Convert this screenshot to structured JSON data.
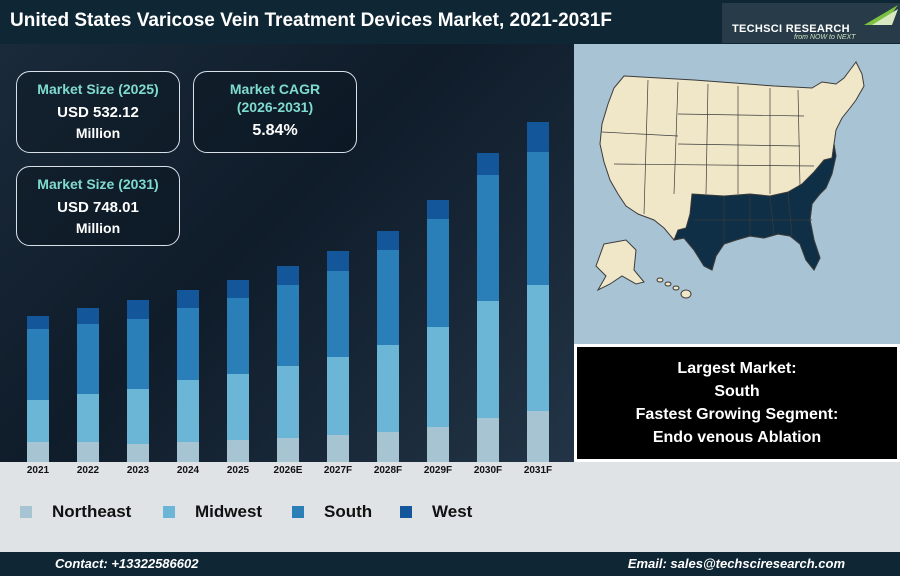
{
  "header": {
    "title": "United States Varicose Vein Treatment Devices Market, 2021-2031F",
    "logo_name": "TECHSCI RESEARCH",
    "logo_tagline": "from NOW to NEXT"
  },
  "stats": [
    {
      "label": "Market Size (2025)",
      "value": "USD 532.12",
      "sub": "Million"
    },
    {
      "label": "Market CAGR",
      "label2": "(2026-2031)",
      "value": "5.84%"
    },
    {
      "label": "Market Size (2031)",
      "value": "USD 748.01",
      "sub": "Million"
    }
  ],
  "info": {
    "line1": "Largest Market:",
    "line2": "South",
    "line3": "Fastest Growing Segment:",
    "line4": "Endo venous Ablation"
  },
  "footer": {
    "contact": "Contact: +13322586602",
    "email": "Email: sales@techsciresearch.com"
  },
  "colors": {
    "header_bg": "#0f2634",
    "northeast": "#a7c4d2",
    "midwest": "#6bb5d6",
    "south": "#2b7fb8",
    "west": "#13579a",
    "highlight_region": "#0e2f45",
    "map_land": "#f0e7c9",
    "map_water": "#a8c3d3"
  },
  "chart_data": {
    "type": "bar",
    "stacked": true,
    "categories": [
      "2021",
      "2022",
      "2023",
      "2024",
      "2025",
      "2026E",
      "2027F",
      "2028F",
      "2029F",
      "2030F",
      "2031F"
    ],
    "series": [
      {
        "name": "Northeast",
        "values": [
          20,
          20,
          18,
          20,
          22,
          24,
          27,
          30,
          35,
          44,
          51
        ]
      },
      {
        "name": "Midwest",
        "values": [
          42,
          48,
          55,
          62,
          66,
          72,
          78,
          87,
          100,
          117,
          126
        ]
      },
      {
        "name": "South",
        "values": [
          71,
          70,
          70,
          72,
          76,
          81,
          86,
          95,
          108,
          126,
          133
        ]
      },
      {
        "name": "West",
        "values": [
          13,
          16,
          19,
          18,
          18,
          19,
          20,
          19,
          19,
          22,
          30
        ]
      }
    ],
    "legend": "bottom",
    "grid": false,
    "y_axis_visible": false
  }
}
